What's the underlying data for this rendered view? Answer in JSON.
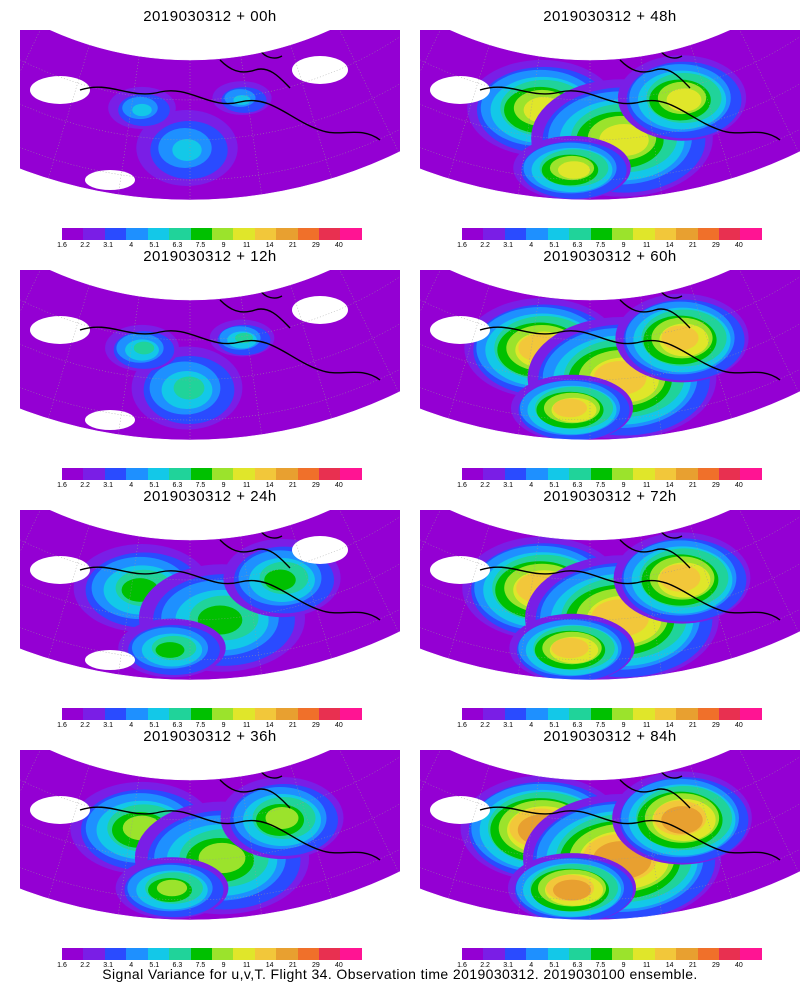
{
  "figure": {
    "caption": "Signal Variance for u,v,T. Flight 34. Observation time 2019030312. 2019030100 ensemble."
  },
  "colorbar": {
    "ticks": [
      "1.6",
      "2.2",
      "3.1",
      "4",
      "5.1",
      "6.3",
      "7.5",
      "9",
      "11",
      "14",
      "21",
      "29",
      "40"
    ],
    "colors": [
      "#9400d3",
      "#7a1ee6",
      "#2a4bff",
      "#1e90ff",
      "#13c8e8",
      "#20d39a",
      "#00c000",
      "#9be32c",
      "#e0e62a",
      "#f2c73a",
      "#e8a030",
      "#f0702a",
      "#e83050",
      "#ff1493"
    ]
  },
  "panels": [
    {
      "title": "2019030312 + 00h",
      "level": 0.15,
      "hotspot": "single"
    },
    {
      "title": "2019030312 + 48h",
      "level": 0.6,
      "hotspot": "multi"
    },
    {
      "title": "2019030312 + 12h",
      "level": 0.3,
      "hotspot": "single"
    },
    {
      "title": "2019030312 + 60h",
      "level": 0.7,
      "hotspot": "multi"
    },
    {
      "title": "2019030312 + 24h",
      "level": 0.4,
      "hotspot": "multi"
    },
    {
      "title": "2019030312 + 72h",
      "level": 0.8,
      "hotspot": "multi"
    },
    {
      "title": "2019030312 + 36h",
      "level": 0.5,
      "hotspot": "multi"
    },
    {
      "title": "2019030312 + 84h",
      "level": 0.85,
      "hotspot": "multi"
    }
  ]
}
